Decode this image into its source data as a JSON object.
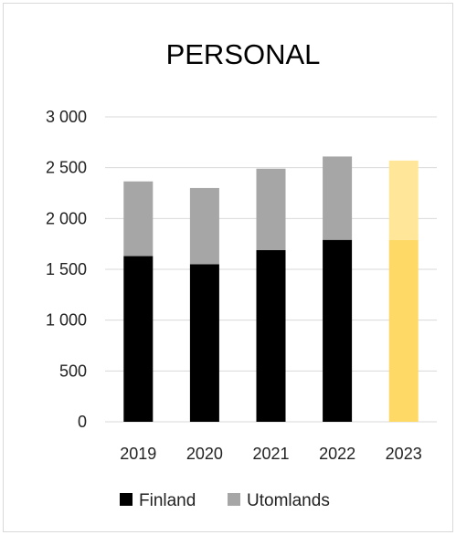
{
  "chart_data": {
    "type": "bar",
    "stacked": true,
    "title": "PERSONAL",
    "categories": [
      "2019",
      "2020",
      "2021",
      "2022",
      "2023"
    ],
    "series": [
      {
        "name": "Finland",
        "values": [
          1630,
          1550,
          1690,
          1790,
          1790
        ],
        "color": "#000000",
        "highlight_color": "#ffd966"
      },
      {
        "name": "Utomlands",
        "values": [
          735,
          750,
          800,
          820,
          780
        ],
        "color": "#a6a6a6",
        "highlight_color": "#ffe699"
      }
    ],
    "highlight_category": "2023",
    "ylim": [
      0,
      3000
    ],
    "yticks": [
      0,
      500,
      1000,
      1500,
      2000,
      2500,
      3000
    ],
    "ytick_labels": [
      "0",
      "500",
      "1 000",
      "1 500",
      "2 000",
      "2 500",
      "3 000"
    ],
    "grid": true,
    "grid_color": "#d9d9d9",
    "legend_position": "bottom"
  }
}
